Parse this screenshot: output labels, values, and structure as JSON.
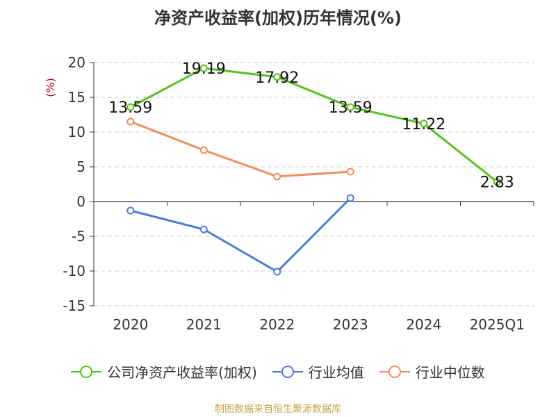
{
  "title": "净资产收益率(加权)历年情况(%)",
  "credit": "制图数据来自恒生聚源数据库",
  "chart_data": {
    "type": "line",
    "ylabel": "(%)",
    "ylim": [
      -15,
      20
    ],
    "yticks": [
      20,
      15,
      10,
      5,
      0,
      -5,
      -10,
      -15
    ],
    "categories": [
      "2020",
      "2021",
      "2022",
      "2023",
      "2024",
      "2025Q1"
    ],
    "grid": true,
    "legend_position": "bottom",
    "series": [
      {
        "name": "公司净资产收益率(加权)",
        "color": "#52c41a",
        "values": [
          13.59,
          19.19,
          17.92,
          13.59,
          11.22,
          2.83
        ],
        "labels": [
          "13.59",
          "19.19",
          "17.92",
          "13.59",
          "11.22",
          "2.83"
        ]
      },
      {
        "name": "行业均值",
        "color": "#4a7cd6",
        "values": [
          -1.3,
          -4.0,
          -10.1,
          0.5,
          null,
          null
        ]
      },
      {
        "name": "行业中位数",
        "color": "#f28c5a",
        "values": [
          11.5,
          7.4,
          3.6,
          4.3,
          null,
          null
        ]
      }
    ]
  }
}
